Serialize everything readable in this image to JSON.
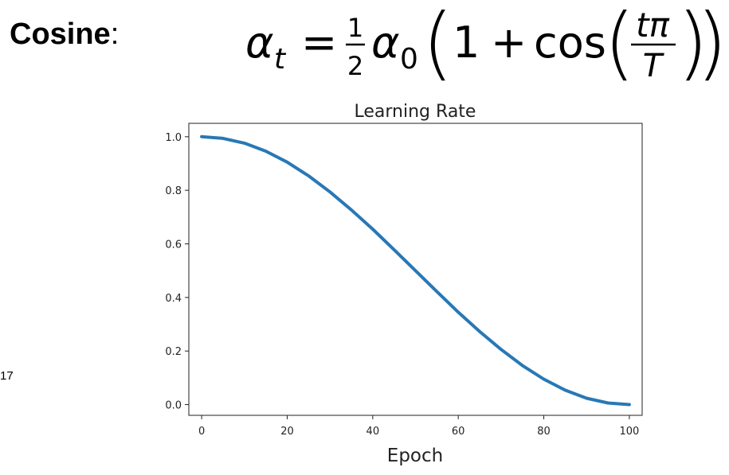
{
  "heading": {
    "bold": "Cosine",
    "suffix": ":"
  },
  "formula": {
    "lhs": "α",
    "lhs_sub": "t",
    "equals": "=",
    "frac_num": "1",
    "frac_den": "2",
    "alpha": "α",
    "alpha_sub": "0",
    "open_paren": "(",
    "one": "1",
    "plus": "+",
    "cos": "cos",
    "inner_open": "(",
    "inner_num": "tπ",
    "inner_den": "T",
    "inner_close": ")",
    "close_paren": ")"
  },
  "side_number": "17",
  "chart_data": {
    "type": "line",
    "title": "Learning Rate",
    "xlabel": "Epoch",
    "ylabel": "",
    "xlim": [
      -3,
      103
    ],
    "ylim": [
      -0.04,
      1.05
    ],
    "xticks": [
      0,
      20,
      40,
      60,
      80,
      100
    ],
    "yticks": [
      0.0,
      0.2,
      0.4,
      0.6,
      0.8,
      1.0
    ],
    "xtick_labels": [
      "0",
      "20",
      "40",
      "60",
      "80",
      "100"
    ],
    "ytick_labels": [
      "0.0",
      "0.2",
      "0.4",
      "0.6",
      "0.8",
      "1.0"
    ],
    "grid": false,
    "color": "#2878b5",
    "series": [
      {
        "x": [
          0,
          5,
          10,
          15,
          20,
          25,
          30,
          35,
          40,
          45,
          50,
          55,
          60,
          65,
          70,
          75,
          80,
          85,
          90,
          95,
          100
        ],
        "y": [
          1.0,
          0.994,
          0.976,
          0.946,
          0.905,
          0.854,
          0.794,
          0.727,
          0.655,
          0.578,
          0.5,
          0.422,
          0.345,
          0.273,
          0.206,
          0.146,
          0.095,
          0.054,
          0.024,
          0.006,
          0.0
        ]
      }
    ]
  }
}
